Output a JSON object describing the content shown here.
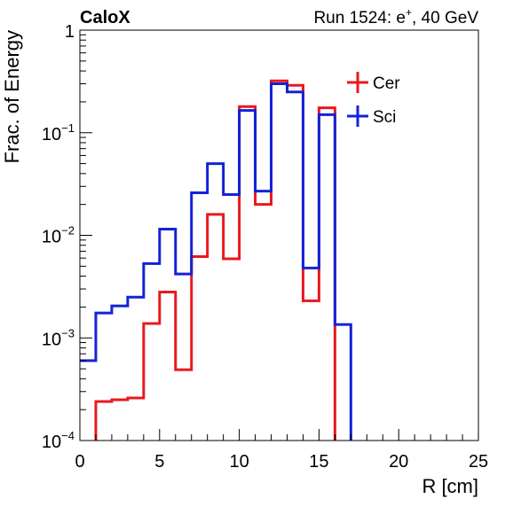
{
  "chart_data": {
    "type": "line",
    "label_left": "CaloX",
    "title_right": "Run 1524: e",
    "title_right_sup": "+",
    "title_right_tail": ", 40 GeV",
    "xlabel": "R [cm]",
    "ylabel": "Frac. of Energy",
    "xlim": [
      0,
      25
    ],
    "ylim": [
      0.0001,
      1
    ],
    "yscale": "log",
    "grid": false,
    "legend_position": "top-right",
    "x_ticks": [
      0,
      5,
      10,
      15,
      20,
      25
    ],
    "x_tick_labels": [
      "0",
      "5",
      "10",
      "15",
      "20",
      "25"
    ],
    "y_tick_labels": [
      {
        "exp": -4,
        "base": "10",
        "sup": "−4"
      },
      {
        "exp": -3,
        "base": "10",
        "sup": "−3"
      },
      {
        "exp": -2,
        "base": "10",
        "sup": "−2"
      },
      {
        "exp": -1,
        "base": "10",
        "sup": "−1"
      },
      {
        "exp": 0,
        "base": "1",
        "sup": ""
      }
    ],
    "bin_edges": [
      0,
      1,
      2,
      3,
      4,
      5,
      6,
      7,
      8,
      9,
      10,
      11,
      12,
      13,
      14,
      15,
      16,
      17,
      18,
      19,
      20,
      21,
      22,
      23,
      24,
      25
    ],
    "series": [
      {
        "name": "Cer",
        "color": "#e8191f",
        "values": [
          8e-05,
          0.00024,
          0.00025,
          0.00026,
          0.00138,
          0.0028,
          0.00049,
          0.0062,
          0.016,
          0.0059,
          0.18,
          0.02,
          0.32,
          0.29,
          0.0023,
          0.175,
          8e-05,
          8e-05,
          8e-05,
          8e-05,
          8e-05,
          8e-05,
          8e-05,
          8e-05,
          8e-05
        ]
      },
      {
        "name": "Sci",
        "color": "#1422d6",
        "values": [
          0.0006,
          0.00175,
          0.00205,
          0.0025,
          0.0053,
          0.0115,
          0.0042,
          0.026,
          0.05,
          0.025,
          0.165,
          0.027,
          0.3,
          0.25,
          0.0048,
          0.15,
          0.00135,
          8e-05,
          8e-05,
          8e-05,
          8e-05,
          8e-05,
          8e-05,
          8e-05,
          8e-05
        ]
      }
    ]
  }
}
